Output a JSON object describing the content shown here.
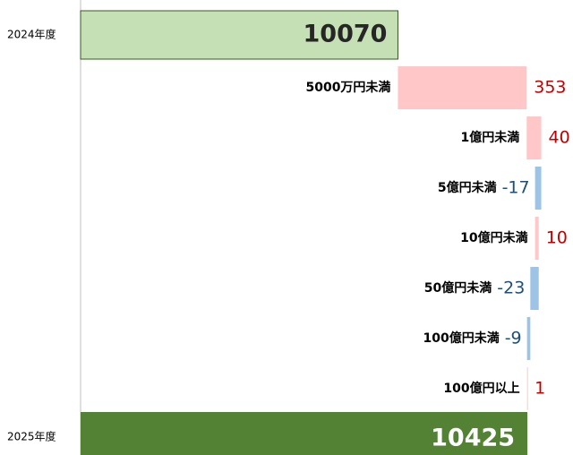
{
  "chart_data": {
    "type": "waterfall",
    "start": {
      "label": "2024年度",
      "value": 10070
    },
    "end": {
      "label": "2025年度",
      "value": 10425
    },
    "categories": [
      "5000万円未満",
      "1億円未満",
      "5億円未満",
      "10億円未満",
      "50億円未満",
      "100億円未満",
      "100億円以上"
    ],
    "values": [
      353,
      40,
      -17,
      10,
      -23,
      -9,
      1
    ],
    "xlim": [
      9200,
      10550
    ],
    "colors": {
      "start": "#c5e0b4",
      "end": "#548235",
      "increase": "#ffc7c7",
      "decrease": "#9dc3e6",
      "increase_text": "#c00000",
      "decrease_text": "#1f4e79"
    }
  }
}
